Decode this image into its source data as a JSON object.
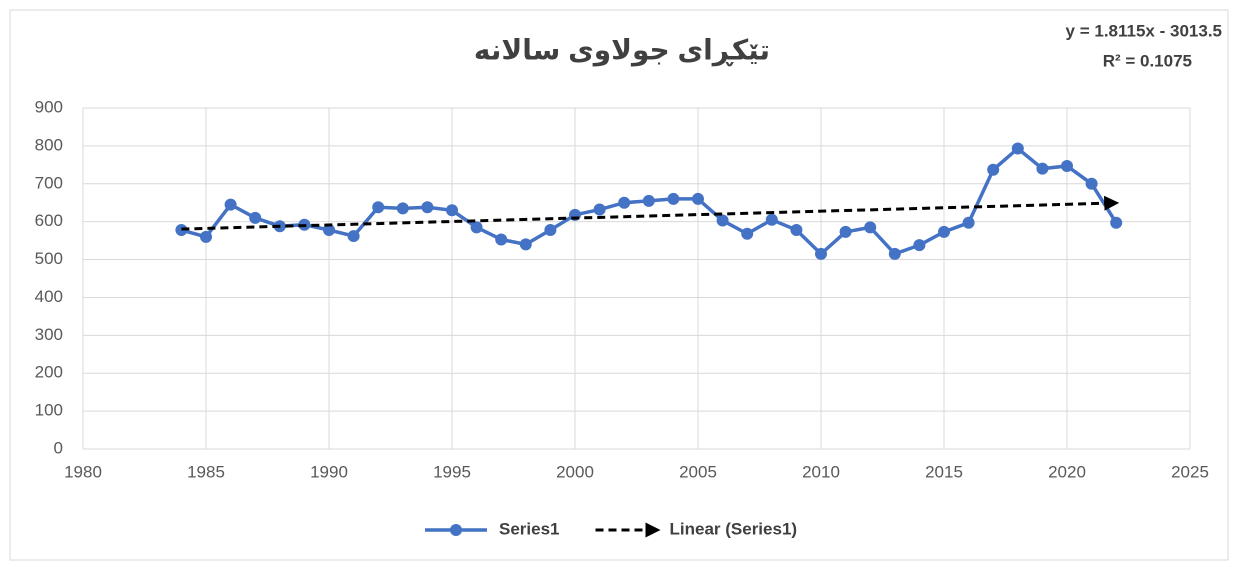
{
  "chart_data": {
    "type": "line",
    "title": "تێکڕای جولاوی سالانە",
    "annotations": [
      "y = 1.8115x - 3013.5",
      "R² = 0.1075"
    ],
    "x": [
      1984,
      1985,
      1986,
      1987,
      1988,
      1989,
      1990,
      1991,
      1992,
      1993,
      1994,
      1995,
      1996,
      1997,
      1998,
      1999,
      2000,
      2001,
      2002,
      2003,
      2004,
      2005,
      2006,
      2007,
      2008,
      2009,
      2010,
      2011,
      2012,
      2013,
      2014,
      2015,
      2016,
      2017,
      2018,
      2019,
      2020,
      2021,
      2022
    ],
    "series": [
      {
        "name": "Series1",
        "color": "#4472c4",
        "marker": true,
        "values": [
          578,
          560,
          645,
          610,
          588,
          592,
          578,
          562,
          638,
          635,
          638,
          630,
          585,
          553,
          540,
          578,
          618,
          632,
          650,
          655,
          660,
          660,
          603,
          568,
          605,
          578,
          515,
          573,
          585,
          515,
          538,
          573,
          597,
          737,
          793,
          740,
          747,
          700,
          597
        ]
      },
      {
        "name": "Linear (Series1)",
        "color": "#000000",
        "line_style": "dashed",
        "x": [
          1984,
          2022
        ],
        "values": [
          580.5,
          649.4
        ]
      }
    ],
    "xlim": [
      1980,
      2025
    ],
    "xticks": [
      1980,
      1985,
      1990,
      1995,
      2000,
      2005,
      2010,
      2015,
      2020,
      2025
    ],
    "ylim": [
      0,
      900
    ],
    "yticks": [
      0,
      100,
      200,
      300,
      400,
      500,
      600,
      700,
      800,
      900
    ],
    "grid": true,
    "legend": "bottom"
  }
}
